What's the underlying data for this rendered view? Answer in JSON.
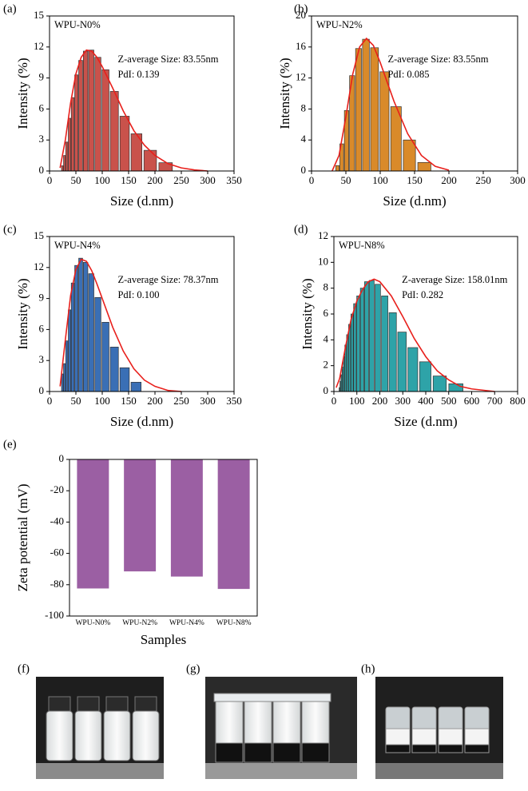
{
  "chart_data": [
    {
      "type": "bar",
      "label": "(a)",
      "xlabel": "Size (d.nm)",
      "ylabel": "Intensity (%)",
      "annotations": [
        "WPU-N0%",
        "Z-average Size: 83.55nm",
        "PdI: 0.139"
      ],
      "x": [
        24.4,
        28.2,
        32.7,
        37.8,
        43.8,
        50.8,
        58.8,
        68.1,
        78.8,
        91.3,
        105.7,
        122.4,
        141.8,
        164.2,
        190.1,
        220.2
      ],
      "values": [
        0.5,
        1.5,
        2.8,
        5.1,
        7.1,
        9.3,
        10.7,
        11.6,
        11.7,
        11.0,
        9.8,
        7.7,
        5.3,
        3.6,
        2.0,
        0.8
      ],
      "color": "#c9524b",
      "fit": {
        "x": [
          20,
          30,
          40,
          50,
          60,
          70,
          80,
          90,
          100,
          120,
          140,
          160,
          180,
          200,
          225,
          250,
          275,
          300
        ],
        "values": [
          0.3,
          3,
          6.6,
          9.4,
          11,
          11.7,
          11.6,
          11.0,
          10.1,
          8.0,
          5.8,
          3.9,
          2.5,
          1.5,
          0.7,
          0.3,
          0.1,
          0
        ],
        "color": "#e8201c"
      },
      "xlim": [
        0,
        350
      ],
      "xticks": [
        0,
        50,
        100,
        150,
        200,
        250,
        300,
        350
      ],
      "ylim": [
        0,
        15
      ],
      "yticks": [
        0,
        3,
        6,
        9,
        12,
        15
      ]
    },
    {
      "type": "bar",
      "label": "(b)",
      "xlabel": "Size (d.nm)",
      "ylabel": "Intensity (%)",
      "annotations": [
        "WPU-N2%",
        "Z-average Size: 83.55nm",
        "PdI: 0.085"
      ],
      "x": [
        37.8,
        43.8,
        50.8,
        58.8,
        68.1,
        78.8,
        91.3,
        105.7,
        122.4,
        141.8,
        164.2
      ],
      "values": [
        0.7,
        3.5,
        7.8,
        12.3,
        15.8,
        17.0,
        15.9,
        12.8,
        8.3,
        4.0,
        1.1
      ],
      "color": "#d98a2a",
      "fit": {
        "x": [
          30,
          40,
          50,
          60,
          70,
          80,
          90,
          100,
          110,
          120,
          140,
          160,
          180,
          200
        ],
        "values": [
          0,
          2,
          7,
          12.5,
          16,
          17.1,
          16.2,
          14,
          11.5,
          9,
          4.8,
          2,
          0.6,
          0.1
        ],
        "color": "#e8201c"
      },
      "xlim": [
        0,
        300
      ],
      "xticks": [
        0,
        50,
        100,
        150,
        200,
        250,
        300
      ],
      "ylim": [
        0,
        20
      ],
      "yticks": [
        0,
        4,
        8,
        12,
        16,
        20
      ]
    },
    {
      "type": "bar",
      "label": "(c)",
      "xlabel": "Size (d.nm)",
      "ylabel": "Intensity (%)",
      "annotations": [
        "WPU-N4%",
        "Z-average Size: 78.37nm",
        "PdI: 0.100"
      ],
      "x": [
        24.4,
        28.2,
        32.7,
        37.8,
        43.8,
        50.8,
        58.8,
        68.1,
        78.8,
        91.3,
        105.7,
        122.4,
        141.8,
        164.2
      ],
      "values": [
        1.7,
        2.7,
        4.9,
        7.9,
        10.5,
        12.2,
        12.9,
        12.5,
        11.4,
        9.1,
        6.7,
        4.3,
        2.3,
        0.9
      ],
      "color": "#3a6fb5",
      "fit": {
        "x": [
          20,
          30,
          40,
          50,
          60,
          70,
          80,
          90,
          100,
          120,
          140,
          160,
          180,
          200,
          225,
          250
        ],
        "values": [
          0.5,
          5,
          9.3,
          11.8,
          12.8,
          12.6,
          11.7,
          10.4,
          9,
          6.2,
          3.9,
          2.2,
          1.1,
          0.5,
          0.1,
          0
        ],
        "color": "#e8201c"
      },
      "xlim": [
        0,
        350
      ],
      "xticks": [
        0,
        50,
        100,
        150,
        200,
        250,
        300,
        350
      ],
      "ylim": [
        0,
        15
      ],
      "yticks": [
        0,
        3,
        6,
        9,
        12,
        15
      ]
    },
    {
      "type": "bar",
      "label": "(d)",
      "xlabel": "Size (d.nm)",
      "ylabel": "Intensity (%)",
      "annotations": [
        "WPU-N8%",
        "Z-average Size: 158.01nm",
        "PdI: 0.282"
      ],
      "x": [
        24.4,
        28.2,
        32.7,
        37.8,
        43.8,
        50.8,
        58.8,
        68.1,
        78.8,
        91.3,
        105.7,
        122.4,
        141.8,
        164.2,
        190.1,
        220.2,
        255.0,
        295.3,
        342.0,
        396.1,
        458.7,
        531.2
      ],
      "values": [
        0.3,
        0.8,
        1.3,
        1.9,
        2.7,
        3.6,
        4.4,
        5.2,
        6.0,
        6.8,
        7.4,
        8.0,
        8.5,
        8.6,
        8.3,
        7.4,
        6.1,
        4.6,
        3.4,
        2.3,
        1.2,
        0.6
      ],
      "color": "#2ea3a8",
      "fit": {
        "x": [
          10,
          25,
          50,
          75,
          100,
          125,
          150,
          175,
          200,
          250,
          300,
          350,
          400,
          450,
          500,
          550,
          600,
          700
        ],
        "values": [
          0.3,
          1,
          3.4,
          5.6,
          7,
          7.9,
          8.5,
          8.7,
          8.5,
          7.4,
          5.8,
          4.1,
          2.7,
          1.6,
          0.9,
          0.4,
          0.2,
          0
        ],
        "color": "#e8201c"
      },
      "xlim": [
        0,
        800
      ],
      "xticks": [
        0,
        100,
        200,
        300,
        400,
        500,
        600,
        700,
        800
      ],
      "ylim": [
        0,
        12
      ],
      "yticks": [
        0,
        2,
        4,
        6,
        8,
        10,
        12
      ]
    },
    {
      "type": "bar",
      "label": "(e)",
      "xlabel": "Samples",
      "ylabel": "Zeta potential (mV)",
      "categories": [
        "WPU-N0%",
        "WPU-N2%",
        "WPU-N4%",
        "WPU-N8%"
      ],
      "values": [
        -82.4,
        -71.5,
        -74.8,
        -82.7
      ],
      "color": "#9b5fa3",
      "ylim": [
        -100,
        0
      ],
      "yticks": [
        0,
        -20,
        -40,
        -60,
        -80,
        -100
      ]
    }
  ],
  "photos": {
    "labels": [
      "(f)",
      "(g)",
      "(h)"
    ]
  }
}
